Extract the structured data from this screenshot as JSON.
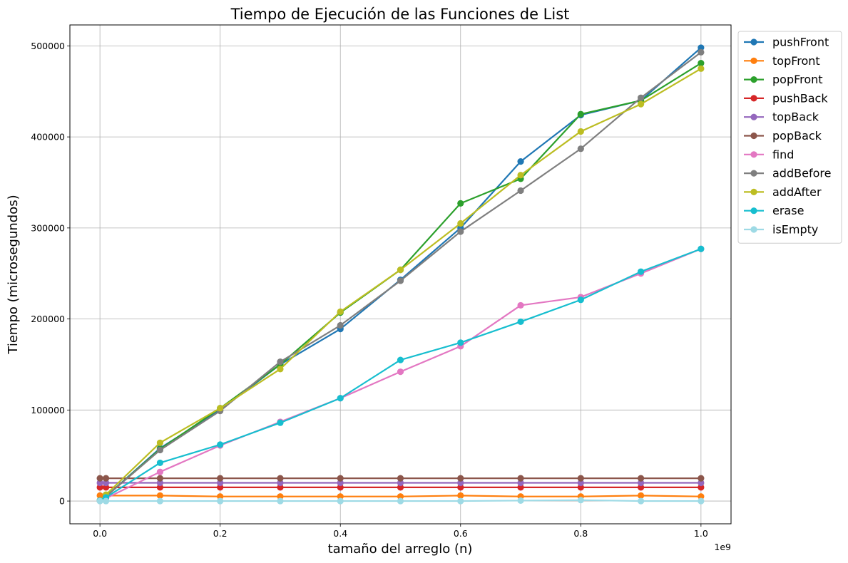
{
  "chart_data": {
    "type": "line",
    "title": "Tiempo de Ejecución de las Funciones de List",
    "xlabel": "tamaño del arreglo (n)",
    "ylabel": "Tiempo (microsegundos)",
    "x_offset_label": "1e9",
    "xlim": [
      -0.05,
      1.05
    ],
    "ylim": [
      -25000,
      523000
    ],
    "x_ticks": [
      0.0,
      0.2,
      0.4,
      0.6,
      0.8,
      1.0
    ],
    "x_tick_labels": [
      "0.0",
      "0.2",
      "0.4",
      "0.6",
      "0.8",
      "1.0"
    ],
    "y_ticks": [
      0,
      100000,
      200000,
      300000,
      400000,
      500000
    ],
    "y_tick_labels": [
      "0",
      "100000",
      "200000",
      "300000",
      "400000",
      "500000"
    ],
    "grid": true,
    "legend_position": "outside-right-top",
    "x": [
      0.0,
      0.01,
      0.1,
      0.2,
      0.3,
      0.4,
      0.5,
      0.6,
      0.7,
      0.8,
      0.9,
      1.0
    ],
    "series": [
      {
        "name": "pushFront",
        "color": "#1f77b4",
        "values": [
          500,
          5000,
          58000,
          100000,
          150000,
          189000,
          243000,
          300000,
          373000,
          424000,
          440000,
          498000
        ]
      },
      {
        "name": "topFront",
        "color": "#ff7f0e",
        "values": [
          6000,
          6000,
          6000,
          5000,
          5000,
          5000,
          5000,
          6000,
          5000,
          5000,
          6000,
          5000
        ]
      },
      {
        "name": "popFront",
        "color": "#2ca02c",
        "values": [
          500,
          5000,
          57000,
          102000,
          150000,
          207000,
          254000,
          327000,
          354000,
          425000,
          440000,
          481000
        ]
      },
      {
        "name": "pushBack",
        "color": "#d62728",
        "values": [
          15000,
          15000,
          15000,
          15000,
          15000,
          15000,
          15000,
          15000,
          15000,
          15000,
          15000,
          15000
        ]
      },
      {
        "name": "topBack",
        "color": "#9467bd",
        "values": [
          20000,
          20000,
          20000,
          20000,
          20000,
          20000,
          20000,
          20000,
          20000,
          20000,
          20000,
          20000
        ]
      },
      {
        "name": "popBack",
        "color": "#8c564b",
        "values": [
          25000,
          25000,
          25000,
          25000,
          25000,
          25000,
          25000,
          25000,
          25000,
          25000,
          25000,
          25000
        ]
      },
      {
        "name": "find",
        "color": "#e377c2",
        "values": [
          500,
          3000,
          32000,
          61000,
          87000,
          113000,
          142000,
          170000,
          215000,
          224000,
          250000,
          277000
        ]
      },
      {
        "name": "addBefore",
        "color": "#7f7f7f",
        "values": [
          500,
          5000,
          56000,
          99000,
          153000,
          193000,
          242000,
          296000,
          341000,
          387000,
          443000,
          493000
        ]
      },
      {
        "name": "addAfter",
        "color": "#bcbd22",
        "values": [
          500,
          7000,
          64000,
          102000,
          145000,
          208000,
          254000,
          305000,
          358000,
          406000,
          436000,
          475000
        ]
      },
      {
        "name": "erase",
        "color": "#17becf",
        "values": [
          500,
          4000,
          42000,
          62000,
          86000,
          113000,
          155000,
          174000,
          197000,
          221000,
          252000,
          277000
        ]
      },
      {
        "name": "isEmpty",
        "color": "#9edae5",
        "values": [
          0,
          0,
          0,
          0,
          0,
          0,
          0,
          0,
          500,
          1000,
          0,
          0
        ]
      }
    ]
  }
}
